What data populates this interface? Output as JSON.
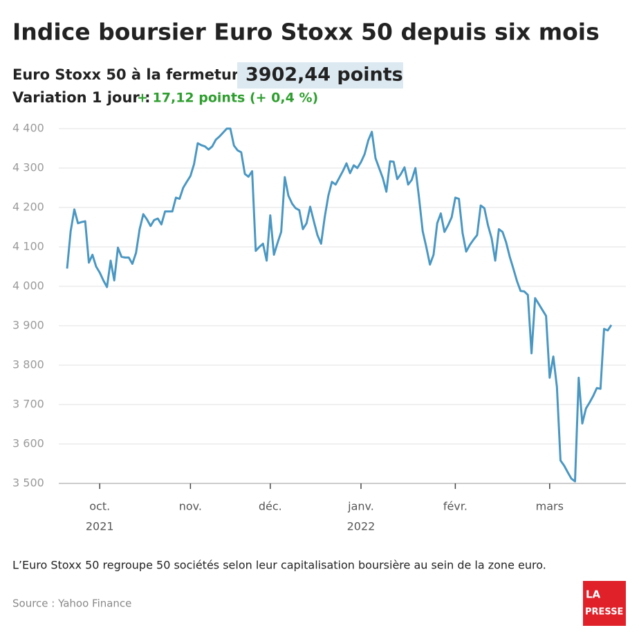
{
  "chart_data": {
    "type": "line",
    "title": "Indice boursier Euro Stoxx 50 depuis six mois",
    "close_label": "Euro Stoxx 50 à la fermeture :",
    "close_value": "3902,44 points",
    "change_label": "Variation 1 jour :",
    "change_value": "+ 17,12 points (+ 0,4 %)",
    "note": "L’Euro Stoxx 50 regroupe 50 sociétés selon leur capitalisation boursière au sein de la zone euro.",
    "source": "Source : Yahoo Finance",
    "logo": [
      "LA",
      "PRESSE"
    ],
    "color": "#4a97c2",
    "grid": true,
    "series": [
      {
        "name": "Euro Stoxx 50",
        "color": "#4a97c2",
        "values": [
          4045,
          4140,
          4195,
          4160,
          4163,
          4165,
          4060,
          4080,
          4050,
          4035,
          4015,
          3998,
          4065,
          4015,
          4098,
          4075,
          4073,
          4073,
          4057,
          4085,
          4145,
          4183,
          4170,
          4153,
          4168,
          4172,
          4157,
          4190,
          4190,
          4190,
          4225,
          4222,
          4250,
          4265,
          4280,
          4310,
          4363,
          4358,
          4355,
          4347,
          4355,
          4372,
          4380,
          4390,
          4400,
          4400,
          4357,
          4345,
          4340,
          4285,
          4278,
          4292,
          4090,
          4100,
          4108,
          4065,
          4180,
          4080,
          4110,
          4138,
          4277,
          4230,
          4210,
          4198,
          4193,
          4145,
          4160,
          4202,
          4165,
          4130,
          4108,
          4175,
          4230,
          4265,
          4258,
          4275,
          4292,
          4312,
          4287,
          4307,
          4300,
          4315,
          4335,
          4370,
          4392,
          4325,
          4300,
          4275,
          4240,
          4317,
          4316,
          4272,
          4285,
          4302,
          4258,
          4270,
          4300,
          4225,
          4140,
          4100,
          4055,
          4080,
          4160,
          4185,
          4138,
          4155,
          4175,
          4225,
          4222,
          4135,
          4088,
          4105,
          4118,
          4130,
          4205,
          4198,
          4155,
          4122,
          4065,
          4145,
          4138,
          4112,
          4075,
          4045,
          4013,
          3988,
          3987,
          3978,
          3830,
          3970,
          3955,
          3940,
          3925,
          3768,
          3822,
          3745,
          3558,
          3545,
          3528,
          3512,
          3505,
          3768,
          3652,
          3690,
          3705,
          3722,
          3742,
          3740,
          3892,
          3888,
          3902
        ]
      }
    ],
    "ylim": [
      3500,
      4400
    ],
    "yticks": [
      {
        "value": 3500,
        "label": "3 500"
      },
      {
        "value": 3600,
        "label": "3 600"
      },
      {
        "value": 3700,
        "label": "3 700"
      },
      {
        "value": 3800,
        "label": "3 800"
      },
      {
        "value": 3900,
        "label": "3 900"
      },
      {
        "value": 4000,
        "label": "4 000"
      },
      {
        "value": 4100,
        "label": "4 100"
      },
      {
        "value": 4200,
        "label": "4 200"
      },
      {
        "value": 4300,
        "label": "4 300"
      },
      {
        "value": 4400,
        "label": "4 400"
      }
    ],
    "xticks": [
      {
        "value": 9,
        "label": "oct."
      },
      {
        "value": 34,
        "label": "nov."
      },
      {
        "value": 56,
        "label": "déc."
      },
      {
        "value": 81,
        "label": "janv."
      },
      {
        "value": 107,
        "label": "févr."
      },
      {
        "value": 133,
        "label": "mars"
      }
    ],
    "xtick_years": [
      {
        "value": 9,
        "label": "2021"
      },
      {
        "value": 81,
        "label": "2022"
      }
    ]
  }
}
